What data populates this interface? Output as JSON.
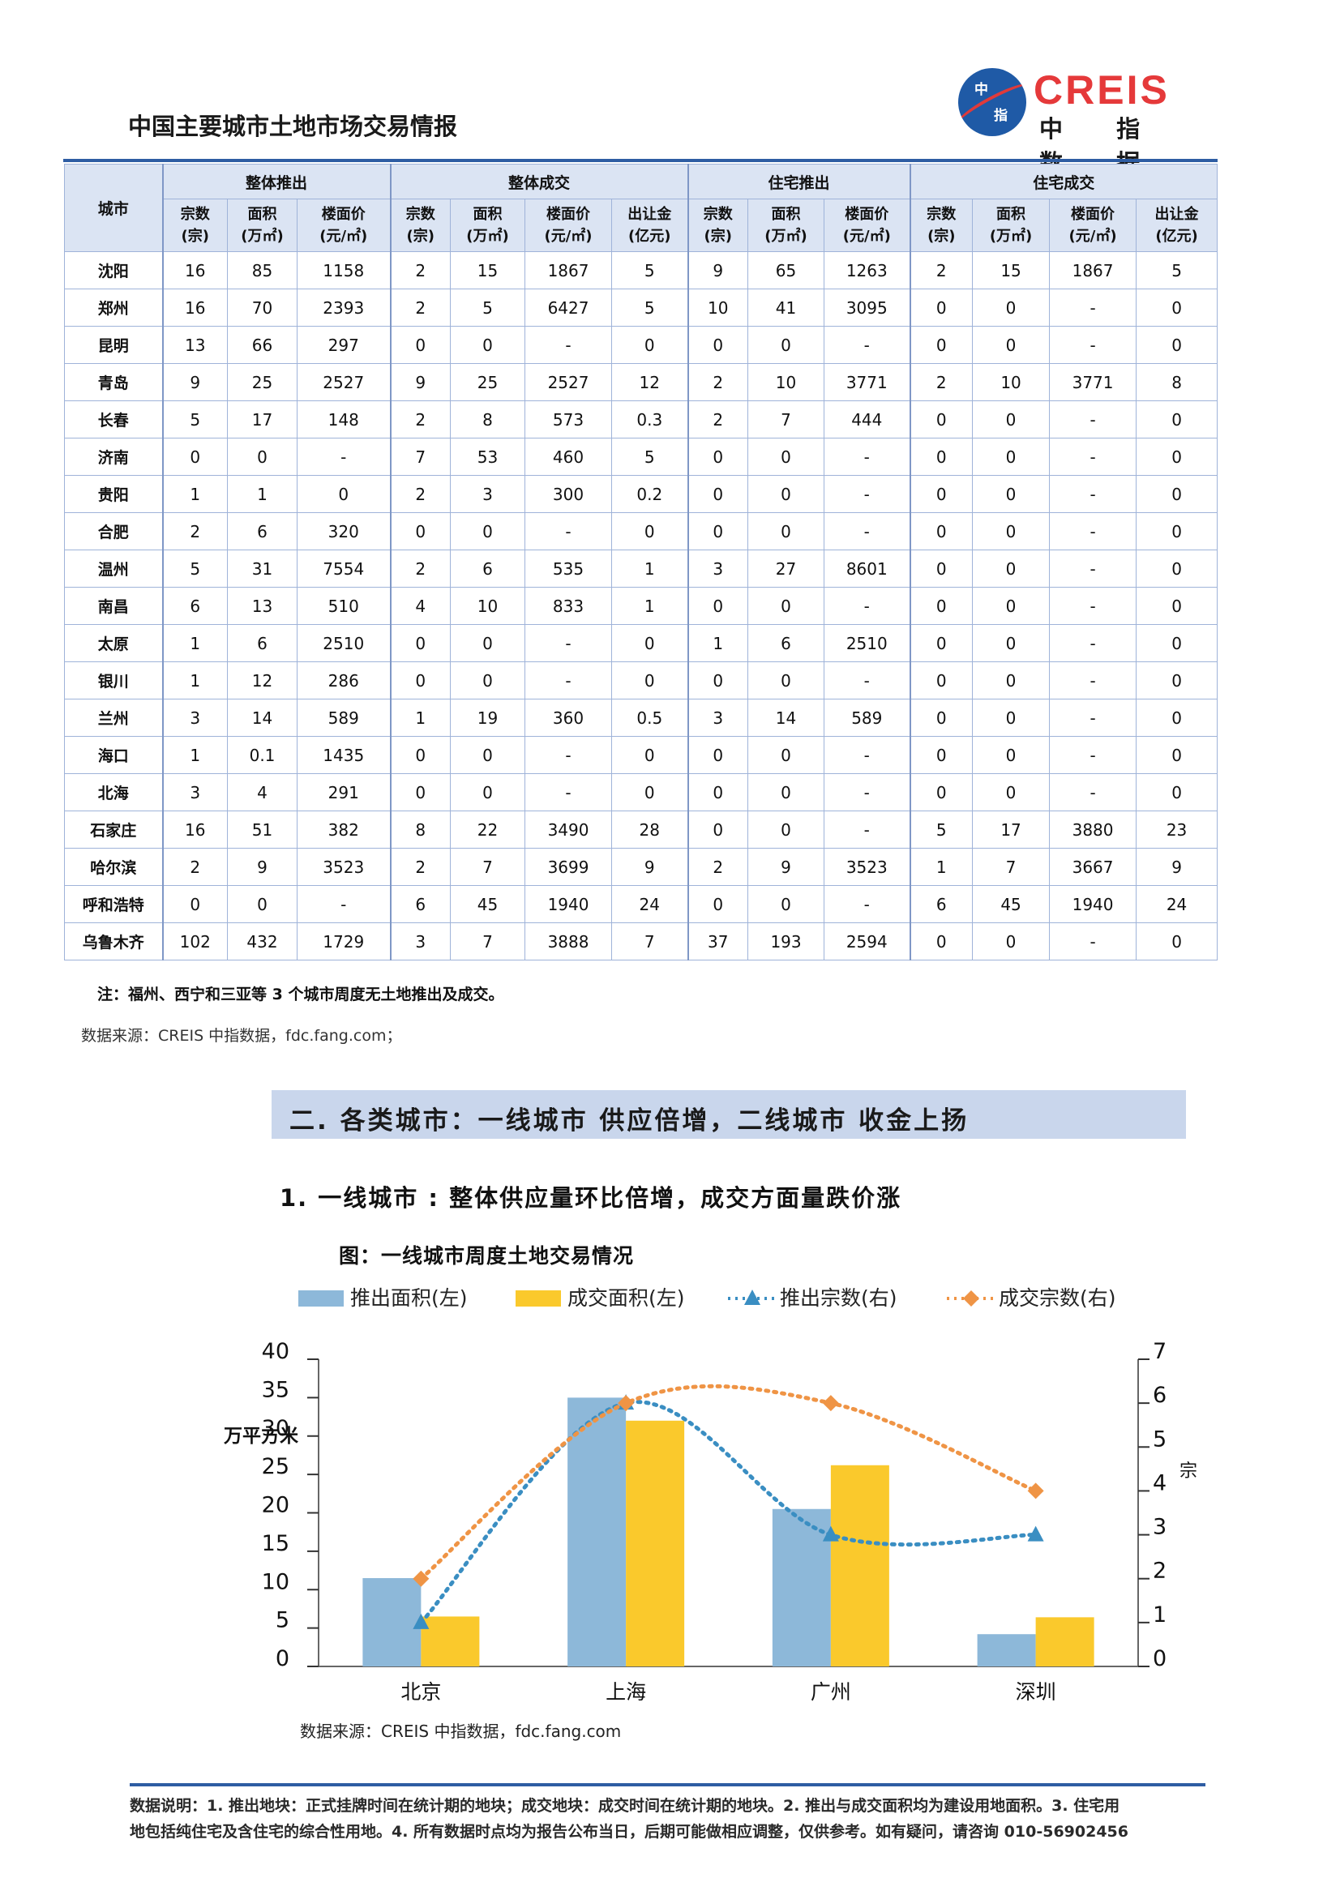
{
  "header": {
    "title": "中国主要城市土地市场交易情报",
    "logo_en": "CREIS",
    "logo_cn": "中 指 数 据",
    "logo_mark_top": "中",
    "logo_mark_bottom": "指"
  },
  "table": {
    "city_header": "城市",
    "groups": [
      "整体推出",
      "整体成交",
      "住宅推出",
      "住宅成交"
    ],
    "subheaders": [
      [
        "宗数",
        "(宗)"
      ],
      [
        "面积",
        "(万㎡)"
      ],
      [
        "楼面价",
        "(元/㎡)"
      ],
      [
        "宗数",
        "(宗)"
      ],
      [
        "面积",
        "(万㎡)"
      ],
      [
        "楼面价",
        "(元/㎡)"
      ],
      [
        "出让金",
        "(亿元)"
      ],
      [
        "宗数",
        "(宗)"
      ],
      [
        "面积",
        "(万㎡)"
      ],
      [
        "楼面价",
        "(元/㎡)"
      ],
      [
        "宗数",
        "(宗)"
      ],
      [
        "面积",
        "(万㎡)"
      ],
      [
        "楼面价",
        "(元/㎡)"
      ],
      [
        "出让金",
        "(亿元)"
      ]
    ],
    "rows": [
      [
        "沈阳",
        "16",
        "85",
        "1158",
        "2",
        "15",
        "1867",
        "5",
        "9",
        "65",
        "1263",
        "2",
        "15",
        "1867",
        "5"
      ],
      [
        "郑州",
        "16",
        "70",
        "2393",
        "2",
        "5",
        "6427",
        "5",
        "10",
        "41",
        "3095",
        "0",
        "0",
        "-",
        "0"
      ],
      [
        "昆明",
        "13",
        "66",
        "297",
        "0",
        "0",
        "-",
        "0",
        "0",
        "0",
        "-",
        "0",
        "0",
        "-",
        "0"
      ],
      [
        "青岛",
        "9",
        "25",
        "2527",
        "9",
        "25",
        "2527",
        "12",
        "2",
        "10",
        "3771",
        "2",
        "10",
        "3771",
        "8"
      ],
      [
        "长春",
        "5",
        "17",
        "148",
        "2",
        "8",
        "573",
        "0.3",
        "2",
        "7",
        "444",
        "0",
        "0",
        "-",
        "0"
      ],
      [
        "济南",
        "0",
        "0",
        "-",
        "7",
        "53",
        "460",
        "5",
        "0",
        "0",
        "-",
        "0",
        "0",
        "-",
        "0"
      ],
      [
        "贵阳",
        "1",
        "1",
        "0",
        "2",
        "3",
        "300",
        "0.2",
        "0",
        "0",
        "-",
        "0",
        "0",
        "-",
        "0"
      ],
      [
        "合肥",
        "2",
        "6",
        "320",
        "0",
        "0",
        "-",
        "0",
        "0",
        "0",
        "-",
        "0",
        "0",
        "-",
        "0"
      ],
      [
        "温州",
        "5",
        "31",
        "7554",
        "2",
        "6",
        "535",
        "1",
        "3",
        "27",
        "8601",
        "0",
        "0",
        "-",
        "0"
      ],
      [
        "南昌",
        "6",
        "13",
        "510",
        "4",
        "10",
        "833",
        "1",
        "0",
        "0",
        "-",
        "0",
        "0",
        "-",
        "0"
      ],
      [
        "太原",
        "1",
        "6",
        "2510",
        "0",
        "0",
        "-",
        "0",
        "1",
        "6",
        "2510",
        "0",
        "0",
        "-",
        "0"
      ],
      [
        "银川",
        "1",
        "12",
        "286",
        "0",
        "0",
        "-",
        "0",
        "0",
        "0",
        "-",
        "0",
        "0",
        "-",
        "0"
      ],
      [
        "兰州",
        "3",
        "14",
        "589",
        "1",
        "19",
        "360",
        "0.5",
        "3",
        "14",
        "589",
        "0",
        "0",
        "-",
        "0"
      ],
      [
        "海口",
        "1",
        "0.1",
        "1435",
        "0",
        "0",
        "-",
        "0",
        "0",
        "0",
        "-",
        "0",
        "0",
        "-",
        "0"
      ],
      [
        "北海",
        "3",
        "4",
        "291",
        "0",
        "0",
        "-",
        "0",
        "0",
        "0",
        "-",
        "0",
        "0",
        "-",
        "0"
      ],
      [
        "石家庄",
        "16",
        "51",
        "382",
        "8",
        "22",
        "3490",
        "28",
        "0",
        "0",
        "-",
        "5",
        "17",
        "3880",
        "23"
      ],
      [
        "哈尔滨",
        "2",
        "9",
        "3523",
        "2",
        "7",
        "3699",
        "9",
        "2",
        "9",
        "3523",
        "1",
        "7",
        "3667",
        "9"
      ],
      [
        "呼和浩特",
        "0",
        "0",
        "-",
        "6",
        "45",
        "1940",
        "24",
        "0",
        "0",
        "-",
        "6",
        "45",
        "1940",
        "24"
      ],
      [
        "乌鲁木齐",
        "102",
        "432",
        "1729",
        "3",
        "7",
        "3888",
        "7",
        "37",
        "193",
        "2594",
        "0",
        "0",
        "-",
        "0"
      ]
    ],
    "note": "注：福州、西宁和三亚等 3 个城市周度无土地推出及成交。",
    "source": "数据来源：CREIS 中指数据，fdc.fang.com；"
  },
  "section": {
    "title": "二. 各类城市：一线城市 供应倍增，二线城市 收金上扬",
    "subtitle": "1. 一线城市 : 整体供应量环比倍增，成交方面量跌价涨",
    "figure_title": "图：一线城市周度土地交易情况",
    "figure_source": "数据来源：CREIS 中指数据，fdc.fang.com"
  },
  "chart_data": {
    "type": "bar",
    "categories": [
      "北京",
      "上海",
      "广州",
      "深圳"
    ],
    "series": [
      {
        "name": "推出面积(左)",
        "kind": "bar",
        "axis": "left",
        "color": "#8db8d9",
        "values": [
          11.5,
          35,
          20.5,
          4.2
        ]
      },
      {
        "name": "成交面积(左)",
        "kind": "bar",
        "axis": "left",
        "color": "#fac92c",
        "values": [
          6.5,
          32,
          26.2,
          6.4
        ]
      },
      {
        "name": "推出宗数(右)",
        "kind": "line",
        "axis": "right",
        "color": "#3a8ec2",
        "marker": "triangle",
        "values": [
          1,
          6,
          3,
          3
        ]
      },
      {
        "name": "成交宗数(右)",
        "kind": "line",
        "axis": "right",
        "color": "#ef9445",
        "marker": "diamond",
        "values": [
          2,
          6,
          6,
          4
        ]
      }
    ],
    "ylabel_left": "万平方米",
    "ylabel_right": "宗",
    "ylim_left": [
      0,
      40
    ],
    "yticks_left": [
      "0",
      "5",
      "10",
      "15",
      "20",
      "25",
      "30",
      "35",
      "40"
    ],
    "ylim_right": [
      0,
      7
    ],
    "yticks_right": [
      "0",
      "1",
      "2",
      "3",
      "4",
      "5",
      "6",
      "7"
    ],
    "legend_position": "top",
    "grid": false
  },
  "footer": {
    "line1": "数据说明：1. 推出地块：正式挂牌时间在统计期的地块；成交地块：成交时间在统计期的地块。2. 推出与成交面积均为建设用地面积。3. 住宅用",
    "line2": "地包括纯住宅及含住宅的综合性用地。4. 所有数据时点均为报告公布当日，后期可能做相应调整，仅供参考。如有疑问，请咨询 010-56902456"
  }
}
